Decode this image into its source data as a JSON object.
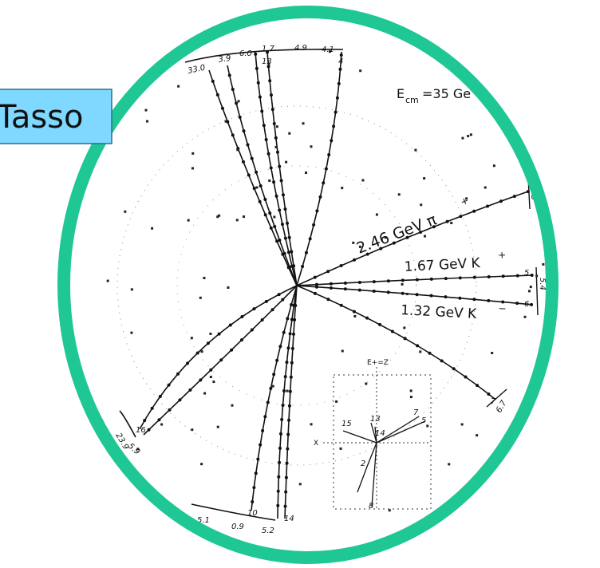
{
  "label": "Tasso",
  "energy": {
    "symbol": "E",
    "subscript": "cm",
    "value": "=35 Ge"
  },
  "tracks": {
    "pi_plus": "2.46 GeV  π",
    "pi_sup": "+",
    "k_plus": "1.67 GeV  K",
    "k_plus_sup": "+",
    "k_minus": "1.32 GeV  K",
    "k_minus_sup": "−"
  },
  "top_labels": [
    "33.0",
    "3.9",
    "6.0",
    "1.7",
    "4.9",
    "4.1"
  ],
  "top_ids": [
    "13",
    "4"
  ],
  "right_labels": [
    "5.5",
    "5",
    "5.4",
    "6",
    "7",
    "6.7"
  ],
  "left_labels": [
    "23.9",
    "5.9",
    "16"
  ],
  "bottom_labels": [
    "5.1",
    "0.9",
    "5.2",
    "10",
    "14"
  ],
  "inset": {
    "axis_top": "E+=Z",
    "axis_left": "X",
    "ids": [
      "15",
      "13",
      "14",
      "7",
      "5",
      "2",
      "8"
    ]
  }
}
